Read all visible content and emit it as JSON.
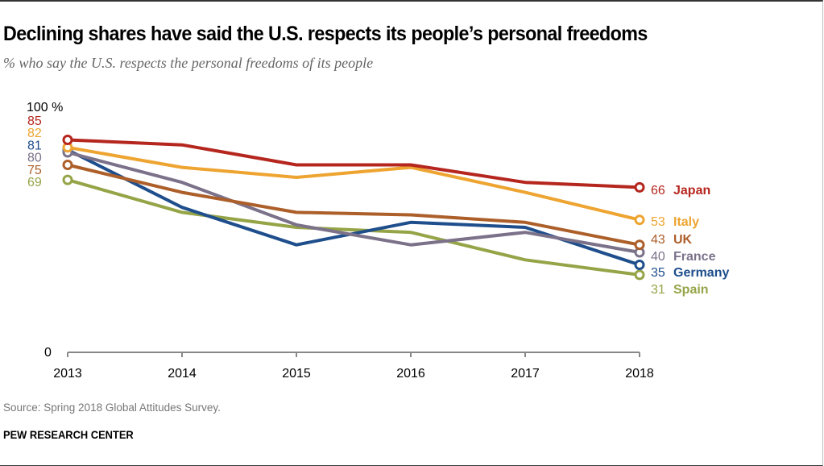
{
  "header": {
    "title": "Declining shares have said the U.S. respects its people’s personal freedoms",
    "subtitle": "% who say the U.S. respects the personal freedoms of its people"
  },
  "footer": {
    "source": "Source: Spring 2018 Global Attitudes Survey.",
    "brand": "PEW RESEARCH CENTER"
  },
  "chart_data": {
    "type": "line",
    "title": "Declining shares have said the U.S. respects its people’s personal freedoms",
    "subtitle": "% who say the U.S. respects the personal freedoms of its people",
    "xlabel": "",
    "ylabel": "",
    "x": [
      "2013",
      "2014",
      "2015",
      "2016",
      "2017",
      "2018"
    ],
    "ylim": [
      0,
      100
    ],
    "y_tick_labels": [
      "0",
      "100 %"
    ],
    "grid": false,
    "legend": "direct labels at line ends (right)",
    "series": [
      {
        "name": "Japan",
        "color": "#b5261e",
        "values": [
          85,
          83,
          75,
          75,
          68,
          66
        ]
      },
      {
        "name": "Italy",
        "color": "#eea431",
        "values": [
          82,
          74,
          70,
          74,
          64,
          53
        ]
      },
      {
        "name": "UK",
        "color": "#ad5f2a",
        "values": [
          75,
          64,
          56,
          55,
          52,
          43
        ]
      },
      {
        "name": "France",
        "color": "#7b728a",
        "values": [
          80,
          68,
          51,
          43,
          48,
          40
        ]
      },
      {
        "name": "Germany",
        "color": "#1f4e8c",
        "values": [
          81,
          58,
          43,
          52,
          50,
          35
        ]
      },
      {
        "name": "Spain",
        "color": "#95a447",
        "values": [
          69,
          56,
          50,
          48,
          37,
          31
        ]
      }
    ]
  }
}
